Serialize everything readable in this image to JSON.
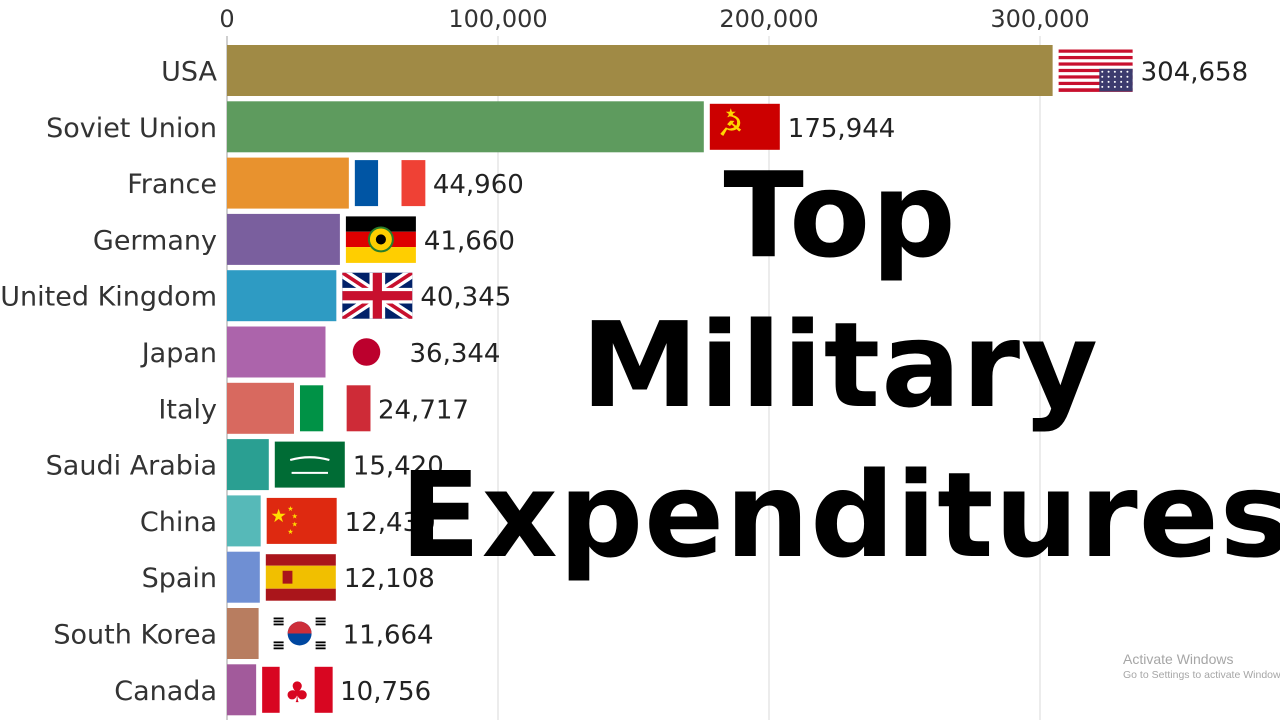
{
  "chart_data": {
    "type": "bar",
    "orientation": "horizontal",
    "title": "Top\nMilitary\nExpenditures",
    "x_ticks": [
      "0",
      "100,000",
      "200,000",
      "300,000"
    ],
    "xlim": [
      0,
      330000
    ],
    "grid": true,
    "categories": [
      "USA",
      "Soviet Union",
      "France",
      "Germany",
      "United Kingdom",
      "Japan",
      "Italy",
      "Saudi Arabia",
      "China",
      "Spain",
      "South Korea",
      "Canada"
    ],
    "values": [
      304658,
      175944,
      44960,
      41660,
      40345,
      36344,
      24717,
      15420,
      12430,
      12108,
      11664,
      10756
    ],
    "value_labels": [
      "304,658",
      "175,944",
      "44,960",
      "41,660",
      "40,345",
      "36,344",
      "24,717",
      "15,420",
      "12,430",
      "12,108",
      "11,664",
      "10,756"
    ],
    "bar_colors": [
      "#a08a45",
      "#5e9b5e",
      "#e8922e",
      "#7a5f9e",
      "#2e9bc3",
      "#ac64ab",
      "#d8695f",
      "#2a9f92",
      "#56b9b8",
      "#6f8fd3",
      "#b87d60",
      "#a25a9b"
    ],
    "flag_icons": [
      "usa-flag",
      "soviet-flag",
      "france-flag",
      "east-germany-flag",
      "uk-flag",
      "japan-flag",
      "italy-flag",
      "saudi-flag",
      "china-flag",
      "spain-flag",
      "south-korea-flag",
      "canada-flag"
    ]
  },
  "watermark": {
    "line1": "Activate Windows",
    "line2": "Go to Settings to activate Windows."
  }
}
